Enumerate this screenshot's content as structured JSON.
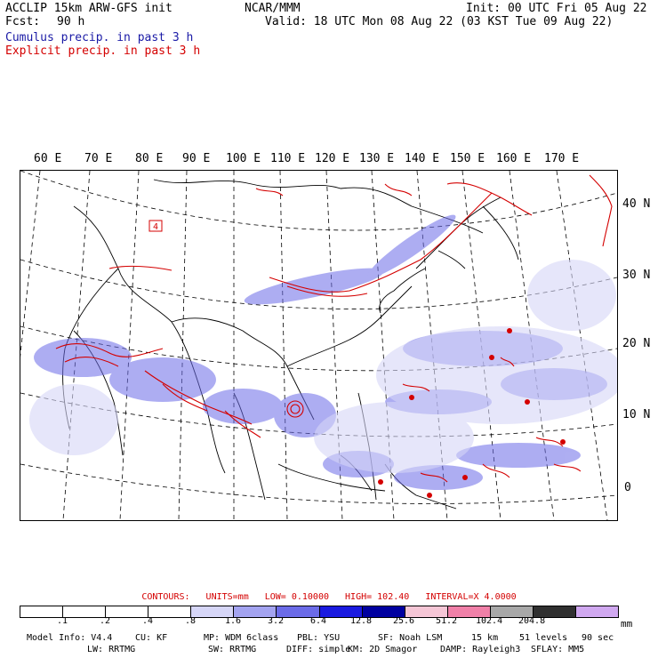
{
  "header": {
    "model": "ACCLIP 15km ARW-GFS init",
    "fcst_label": "Fcst:",
    "fcst_value": "90 h",
    "org": "NCAR/MMM",
    "init": "Init: 00 UTC Fri 05 Aug 22",
    "valid": "Valid: 18 UTC Mon 08 Aug 22 (03 KST Tue 09 Aug 22)",
    "legend_cumulus": "Cumulus precip. in past 3 h",
    "legend_explicit": "Explicit precip. in past 3 h"
  },
  "longitude_labels": [
    "60 E",
    "70 E",
    "80 E",
    "90 E",
    "100 E",
    "110 E",
    "120 E",
    "130 E",
    "140 E",
    "150 E",
    "160 E",
    "170 E"
  ],
  "latitude_labels": [
    "40 N",
    "30 N",
    "20 N",
    "10 N",
    "0"
  ],
  "map_annotations": {
    "box_label": "4"
  },
  "contours": {
    "label": "CONTOURS:",
    "units": "UNITS=mm",
    "low": "LOW= 0.10000",
    "high": "HIGH= 102.40",
    "interval": "INTERVAL=X 4.0000"
  },
  "colorbar": {
    "unit": "mm",
    "ticks": [
      ".1",
      ".2",
      ".4",
      ".8",
      "1.6",
      "3.2",
      "6.4",
      "12.8",
      "25.6",
      "51.2",
      "102.4",
      "204.8"
    ],
    "colors": [
      "#ffffff",
      "#ffffff",
      "#ffffff",
      "#ffffff",
      "#d6d6f7",
      "#a3a3f0",
      "#6b6be8",
      "#1a1ae0",
      "#0000a0",
      "#f5c6d6",
      "#f080a8",
      "#a8a8a8",
      "#303030",
      "#d0a8f0"
    ]
  },
  "footer": {
    "line1": [
      "Model Info: V4.4",
      "CU: KF",
      "MP: WDM 6class",
      "PBL: YSU",
      "SF: Noah LSM",
      "15 km",
      "51 levels",
      "90 sec"
    ],
    "line2": [
      "LW: RRTMG",
      "SW: RRTMG",
      "DIFF: simple",
      "KM: 2D Smagor",
      "DAMP: Rayleigh3",
      "SFLAY: MM5"
    ]
  }
}
